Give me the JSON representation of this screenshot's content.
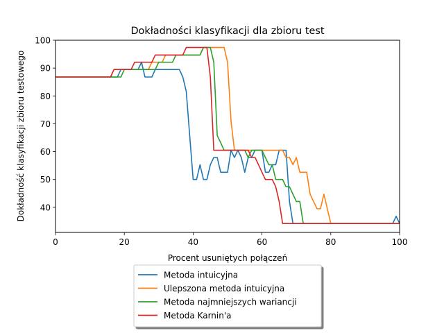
{
  "chart_data": {
    "type": "line",
    "title": "Dokładności klasyfikacji dla zbioru test",
    "xlabel": "Procent usuniętych połączeń",
    "ylabel": "Dokładność klasyfikacji zbioru testowego",
    "xlim": [
      0,
      100
    ],
    "ylim": [
      31,
      100
    ],
    "xticks": [
      "0",
      "20",
      "40",
      "60",
      "80",
      "100"
    ],
    "yticks": [
      "40",
      "50",
      "60",
      "70",
      "80",
      "90",
      "100"
    ],
    "grid": false,
    "legend_position": "below plot, centered, with shadow",
    "series": [
      {
        "name": "Metoda intuicyjna",
        "color": "#1f77b4",
        "x": [
          0,
          16,
          17,
          18,
          19,
          20,
          21,
          22,
          23,
          24,
          25,
          26,
          27,
          28,
          29,
          30,
          31,
          32,
          33,
          34,
          35,
          36,
          37,
          38,
          39,
          40,
          41,
          42,
          43,
          44,
          45,
          46,
          47,
          48,
          49,
          50,
          51,
          52,
          53,
          54,
          55,
          56,
          57,
          58,
          59,
          60,
          61,
          62,
          63,
          64,
          65,
          66,
          67,
          68,
          69,
          70,
          98,
          99,
          100
        ],
        "y": [
          86.8,
          86.8,
          86.8,
          86.8,
          89.5,
          89.5,
          89.5,
          89.5,
          89.5,
          89.5,
          92.1,
          86.8,
          86.8,
          86.8,
          89.5,
          89.5,
          89.5,
          89.5,
          89.5,
          89.5,
          89.5,
          89.5,
          86.8,
          81.6,
          65.8,
          50,
          50,
          55.3,
          50,
          50,
          55.3,
          57.9,
          57.9,
          52.6,
          52.6,
          52.6,
          60.5,
          57.9,
          60.5,
          57.9,
          52.6,
          57.9,
          57.9,
          60.5,
          60.5,
          60.5,
          52.6,
          52.6,
          55.3,
          55.3,
          60.5,
          60.5,
          60.5,
          42.1,
          34.2,
          34.2,
          34.2,
          36.8,
          34.2
        ]
      },
      {
        "name": "Ulepszona metoda intuicyjna",
        "color": "#ff7f0e",
        "x": [
          0,
          16,
          17,
          18,
          19,
          20,
          21,
          22,
          23,
          24,
          25,
          26,
          27,
          28,
          29,
          30,
          31,
          32,
          33,
          34,
          35,
          36,
          37,
          38,
          39,
          40,
          41,
          42,
          43,
          44,
          45,
          46,
          47,
          48,
          49,
          50,
          51,
          52,
          53,
          54,
          55,
          56,
          57,
          58,
          59,
          60,
          61,
          62,
          63,
          64,
          65,
          66,
          67,
          68,
          69,
          70,
          71,
          72,
          73,
          74,
          75,
          76,
          77,
          78,
          79,
          80,
          100
        ],
        "y": [
          86.8,
          86.8,
          89.5,
          89.5,
          89.5,
          89.5,
          89.5,
          89.5,
          89.5,
          89.5,
          89.5,
          89.5,
          89.5,
          92.1,
          92.1,
          92.1,
          92.1,
          94.7,
          94.7,
          94.7,
          94.7,
          94.7,
          94.7,
          94.7,
          94.7,
          94.7,
          94.7,
          94.7,
          97.4,
          97.4,
          97.4,
          97.4,
          97.4,
          97.4,
          97.4,
          92.1,
          71.1,
          60.5,
          60.5,
          60.5,
          60.5,
          60.5,
          60.5,
          60.5,
          60.5,
          60.5,
          60.5,
          60.5,
          60.5,
          60.5,
          60.5,
          60.5,
          57.9,
          57.9,
          55.3,
          57.9,
          52.6,
          52.6,
          52.6,
          44.7,
          42.1,
          39.5,
          39.5,
          44.7,
          39.5,
          34.2,
          34.2
        ]
      },
      {
        "name": "Metoda najmniejszych wariancji",
        "color": "#2ca02c",
        "x": [
          0,
          16,
          17,
          18,
          19,
          20,
          21,
          22,
          23,
          24,
          25,
          26,
          27,
          28,
          29,
          30,
          31,
          32,
          33,
          34,
          35,
          36,
          37,
          38,
          39,
          40,
          41,
          42,
          43,
          44,
          45,
          46,
          47,
          48,
          49,
          50,
          51,
          52,
          53,
          54,
          55,
          56,
          57,
          58,
          59,
          60,
          61,
          62,
          63,
          64,
          65,
          66,
          67,
          68,
          69,
          70,
          71,
          72,
          73,
          100
        ],
        "y": [
          86.8,
          86.8,
          86.8,
          86.8,
          86.8,
          89.5,
          89.5,
          89.5,
          89.5,
          89.5,
          89.5,
          89.5,
          89.5,
          89.5,
          89.5,
          92.1,
          92.1,
          92.1,
          92.1,
          92.1,
          94.7,
          94.7,
          94.7,
          94.7,
          94.7,
          94.7,
          94.7,
          94.7,
          97.4,
          97.4,
          97.4,
          92.1,
          65.8,
          63.2,
          60.5,
          60.5,
          60.5,
          60.5,
          60.5,
          60.5,
          60.5,
          57.9,
          60.5,
          60.5,
          60.5,
          60.5,
          57.9,
          55.3,
          55.3,
          50,
          50,
          50,
          47.4,
          47.4,
          44.7,
          42.1,
          42.1,
          34.2,
          34.2,
          34.2
        ]
      },
      {
        "name": "Metoda Karnin'a",
        "color": "#d62728",
        "x": [
          0,
          16,
          17,
          18,
          19,
          20,
          21,
          22,
          23,
          24,
          25,
          26,
          27,
          28,
          29,
          30,
          31,
          32,
          33,
          34,
          35,
          36,
          37,
          38,
          39,
          40,
          41,
          42,
          43,
          44,
          45,
          46,
          47,
          48,
          49,
          50,
          51,
          52,
          53,
          54,
          55,
          56,
          57,
          58,
          59,
          60,
          61,
          62,
          63,
          64,
          65,
          66,
          67,
          68,
          100
        ],
        "y": [
          86.8,
          86.8,
          89.5,
          89.5,
          89.5,
          89.5,
          89.5,
          89.5,
          92.1,
          92.1,
          92.1,
          92.1,
          92.1,
          92.1,
          94.7,
          94.7,
          94.7,
          94.7,
          94.7,
          94.7,
          94.7,
          94.7,
          94.7,
          97.4,
          97.4,
          97.4,
          97.4,
          97.4,
          97.4,
          97.4,
          86.8,
          60.5,
          60.5,
          60.5,
          60.5,
          60.5,
          60.5,
          60.5,
          60.5,
          60.5,
          60.5,
          60.5,
          57.9,
          57.9,
          55.3,
          52.6,
          50,
          50,
          50,
          47.4,
          42.1,
          34.2,
          34.2,
          34.2,
          34.2
        ]
      }
    ]
  }
}
